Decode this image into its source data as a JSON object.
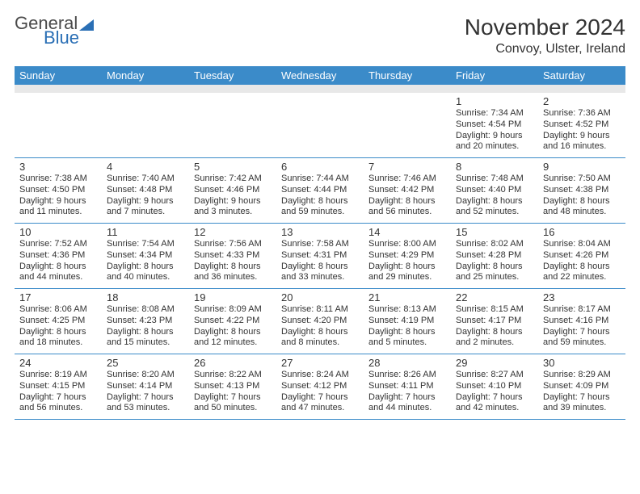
{
  "logo": {
    "text1": "General",
    "text2": "Blue"
  },
  "title": "November 2024",
  "location": "Convoy, Ulster, Ireland",
  "colors": {
    "header_bg": "#3b8bc9",
    "header_text": "#ffffff",
    "week_border": "#3b8bc9",
    "sep_bg": "#e8e8e8",
    "text": "#333333",
    "logo_gray": "#4a4a4a",
    "logo_blue": "#2a6fb5"
  },
  "typography": {
    "title_fontsize": 28,
    "location_fontsize": 16,
    "dayname_fontsize": 13,
    "daynum_fontsize": 13,
    "info_fontsize": 11
  },
  "day_names": [
    "Sunday",
    "Monday",
    "Tuesday",
    "Wednesday",
    "Thursday",
    "Friday",
    "Saturday"
  ],
  "weeks": [
    [
      null,
      null,
      null,
      null,
      null,
      {
        "n": "1",
        "sr": "7:34 AM",
        "ss": "4:54 PM",
        "dl": "9 hours and 20 minutes."
      },
      {
        "n": "2",
        "sr": "7:36 AM",
        "ss": "4:52 PM",
        "dl": "9 hours and 16 minutes."
      }
    ],
    [
      {
        "n": "3",
        "sr": "7:38 AM",
        "ss": "4:50 PM",
        "dl": "9 hours and 11 minutes."
      },
      {
        "n": "4",
        "sr": "7:40 AM",
        "ss": "4:48 PM",
        "dl": "9 hours and 7 minutes."
      },
      {
        "n": "5",
        "sr": "7:42 AM",
        "ss": "4:46 PM",
        "dl": "9 hours and 3 minutes."
      },
      {
        "n": "6",
        "sr": "7:44 AM",
        "ss": "4:44 PM",
        "dl": "8 hours and 59 minutes."
      },
      {
        "n": "7",
        "sr": "7:46 AM",
        "ss": "4:42 PM",
        "dl": "8 hours and 56 minutes."
      },
      {
        "n": "8",
        "sr": "7:48 AM",
        "ss": "4:40 PM",
        "dl": "8 hours and 52 minutes."
      },
      {
        "n": "9",
        "sr": "7:50 AM",
        "ss": "4:38 PM",
        "dl": "8 hours and 48 minutes."
      }
    ],
    [
      {
        "n": "10",
        "sr": "7:52 AM",
        "ss": "4:36 PM",
        "dl": "8 hours and 44 minutes."
      },
      {
        "n": "11",
        "sr": "7:54 AM",
        "ss": "4:34 PM",
        "dl": "8 hours and 40 minutes."
      },
      {
        "n": "12",
        "sr": "7:56 AM",
        "ss": "4:33 PM",
        "dl": "8 hours and 36 minutes."
      },
      {
        "n": "13",
        "sr": "7:58 AM",
        "ss": "4:31 PM",
        "dl": "8 hours and 33 minutes."
      },
      {
        "n": "14",
        "sr": "8:00 AM",
        "ss": "4:29 PM",
        "dl": "8 hours and 29 minutes."
      },
      {
        "n": "15",
        "sr": "8:02 AM",
        "ss": "4:28 PM",
        "dl": "8 hours and 25 minutes."
      },
      {
        "n": "16",
        "sr": "8:04 AM",
        "ss": "4:26 PM",
        "dl": "8 hours and 22 minutes."
      }
    ],
    [
      {
        "n": "17",
        "sr": "8:06 AM",
        "ss": "4:25 PM",
        "dl": "8 hours and 18 minutes."
      },
      {
        "n": "18",
        "sr": "8:08 AM",
        "ss": "4:23 PM",
        "dl": "8 hours and 15 minutes."
      },
      {
        "n": "19",
        "sr": "8:09 AM",
        "ss": "4:22 PM",
        "dl": "8 hours and 12 minutes."
      },
      {
        "n": "20",
        "sr": "8:11 AM",
        "ss": "4:20 PM",
        "dl": "8 hours and 8 minutes."
      },
      {
        "n": "21",
        "sr": "8:13 AM",
        "ss": "4:19 PM",
        "dl": "8 hours and 5 minutes."
      },
      {
        "n": "22",
        "sr": "8:15 AM",
        "ss": "4:17 PM",
        "dl": "8 hours and 2 minutes."
      },
      {
        "n": "23",
        "sr": "8:17 AM",
        "ss": "4:16 PM",
        "dl": "7 hours and 59 minutes."
      }
    ],
    [
      {
        "n": "24",
        "sr": "8:19 AM",
        "ss": "4:15 PM",
        "dl": "7 hours and 56 minutes."
      },
      {
        "n": "25",
        "sr": "8:20 AM",
        "ss": "4:14 PM",
        "dl": "7 hours and 53 minutes."
      },
      {
        "n": "26",
        "sr": "8:22 AM",
        "ss": "4:13 PM",
        "dl": "7 hours and 50 minutes."
      },
      {
        "n": "27",
        "sr": "8:24 AM",
        "ss": "4:12 PM",
        "dl": "7 hours and 47 minutes."
      },
      {
        "n": "28",
        "sr": "8:26 AM",
        "ss": "4:11 PM",
        "dl": "7 hours and 44 minutes."
      },
      {
        "n": "29",
        "sr": "8:27 AM",
        "ss": "4:10 PM",
        "dl": "7 hours and 42 minutes."
      },
      {
        "n": "30",
        "sr": "8:29 AM",
        "ss": "4:09 PM",
        "dl": "7 hours and 39 minutes."
      }
    ]
  ],
  "labels": {
    "sunrise": "Sunrise:",
    "sunset": "Sunset:",
    "daylight": "Daylight:"
  }
}
